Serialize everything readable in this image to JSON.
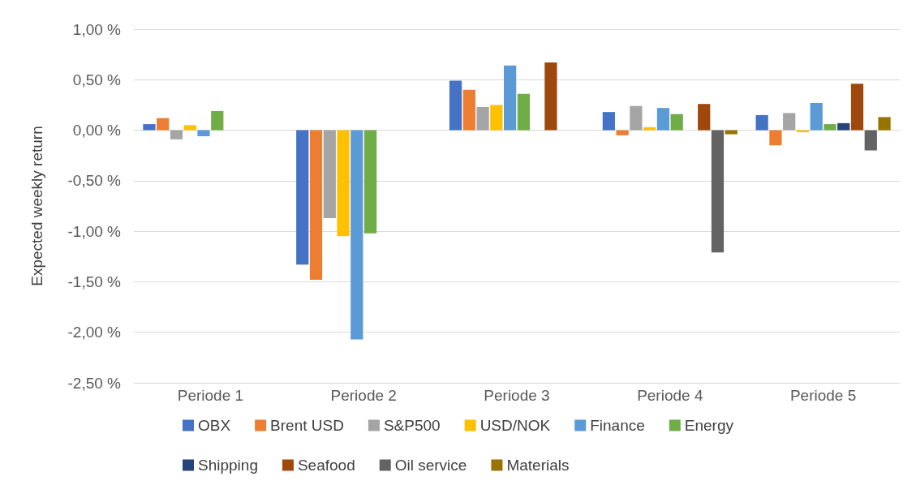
{
  "chart_data": {
    "type": "bar",
    "ylabel": "Expected weekly return",
    "categories": [
      "Periode 1",
      "Periode 2",
      "Periode 3",
      "Periode 4",
      "Periode 5"
    ],
    "series": [
      {
        "name": "OBX",
        "color": "#4472c4",
        "values": [
          0.06,
          -1.33,
          0.49,
          0.18,
          0.15
        ]
      },
      {
        "name": "Brent USD",
        "color": "#ed7d31",
        "values": [
          0.12,
          -1.48,
          0.4,
          -0.05,
          -0.15
        ]
      },
      {
        "name": "S&P500",
        "color": "#a5a5a5",
        "values": [
          -0.09,
          -0.87,
          0.23,
          0.24,
          0.17
        ]
      },
      {
        "name": "USD/NOK",
        "color": "#ffc000",
        "values": [
          0.05,
          -1.05,
          0.25,
          0.03,
          -0.02
        ]
      },
      {
        "name": "Finance",
        "color": "#5b9bd5",
        "values": [
          -0.06,
          -2.07,
          0.64,
          0.22,
          0.27
        ]
      },
      {
        "name": "Energy",
        "color": "#70ad47",
        "values": [
          0.19,
          -1.02,
          0.36,
          0.16,
          0.06
        ]
      },
      {
        "name": "Shipping",
        "color": "#264478",
        "values": [
          null,
          null,
          null,
          null,
          0.07
        ]
      },
      {
        "name": "Seafood",
        "color": "#9e480e",
        "values": [
          null,
          null,
          0.67,
          0.26,
          0.46
        ]
      },
      {
        "name": "Oil service",
        "color": "#636363",
        "values": [
          null,
          null,
          null,
          -1.21,
          -0.2
        ]
      },
      {
        "name": "Materials",
        "color": "#997300",
        "values": [
          null,
          null,
          null,
          -0.04,
          0.13
        ]
      }
    ],
    "ylim": [
      -2.5,
      1.0
    ],
    "yticks": [
      {
        "value": -2.5,
        "label": "-2,50 %"
      },
      {
        "value": -2.0,
        "label": "-2,00 %"
      },
      {
        "value": -1.5,
        "label": "-1,50 %"
      },
      {
        "value": -1.0,
        "label": "-1,00 %"
      },
      {
        "value": -0.5,
        "label": "-0,50 %"
      },
      {
        "value": 0,
        "label": "0,00 %"
      },
      {
        "value": 0.5,
        "label": "0,50 %"
      },
      {
        "value": 1.0,
        "label": "1,00 %"
      }
    ],
    "grid": "y",
    "legend": "bottom"
  }
}
